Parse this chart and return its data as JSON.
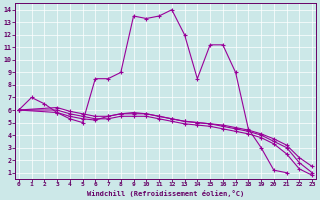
{
  "xlabel": "Windchill (Refroidissement éolien,°C)",
  "background_color": "#cce8e8",
  "line_color": "#990099",
  "xmin": 0,
  "xmax": 23,
  "ymin": 0.5,
  "ymax": 14.5,
  "x_ticks": [
    0,
    1,
    2,
    3,
    4,
    5,
    6,
    7,
    8,
    9,
    10,
    11,
    12,
    13,
    14,
    15,
    16,
    17,
    18,
    19,
    20,
    21,
    22,
    23
  ],
  "y_ticks": [
    1,
    2,
    3,
    4,
    5,
    6,
    7,
    8,
    9,
    10,
    11,
    12,
    13,
    14
  ],
  "line1_x": [
    0,
    1,
    2,
    3,
    4,
    5,
    6,
    7,
    8,
    9,
    10,
    11,
    12,
    13,
    14,
    15,
    16,
    17,
    18,
    19,
    20,
    21
  ],
  "line1_y": [
    6.0,
    7.0,
    6.5,
    5.8,
    5.3,
    5.0,
    8.5,
    8.5,
    9.0,
    13.5,
    13.3,
    13.5,
    14.0,
    12.0,
    8.5,
    11.2,
    11.2,
    9.0,
    4.5,
    3.0,
    1.2,
    1.0
  ],
  "line2_x": [
    0,
    3,
    4,
    5,
    6,
    7,
    8,
    9,
    10,
    11,
    12,
    13,
    14,
    15,
    16,
    17,
    18,
    19,
    20,
    21,
    22,
    23
  ],
  "line2_y": [
    6.0,
    5.8,
    5.5,
    5.3,
    5.2,
    5.5,
    5.7,
    5.8,
    5.7,
    5.5,
    5.3,
    5.1,
    5.0,
    4.9,
    4.7,
    4.5,
    4.3,
    4.0,
    3.5,
    3.0,
    1.8,
    1.0
  ],
  "line3_x": [
    0,
    3,
    4,
    5,
    6,
    7,
    8,
    9,
    10,
    11,
    12,
    13,
    14,
    15,
    16,
    17,
    18,
    19,
    20,
    21,
    22,
    23
  ],
  "line3_y": [
    6.0,
    6.0,
    5.7,
    5.5,
    5.3,
    5.3,
    5.5,
    5.5,
    5.5,
    5.3,
    5.1,
    4.9,
    4.8,
    4.7,
    4.5,
    4.3,
    4.1,
    3.8,
    3.3,
    2.5,
    1.3,
    0.8
  ],
  "line4_x": [
    0,
    3,
    4,
    5,
    6,
    7,
    8,
    9,
    10,
    11,
    12,
    13,
    14,
    15,
    16,
    17,
    18,
    19,
    20,
    21,
    22,
    23
  ],
  "line4_y": [
    6.0,
    6.2,
    5.9,
    5.7,
    5.5,
    5.5,
    5.7,
    5.7,
    5.7,
    5.5,
    5.3,
    5.1,
    5.0,
    4.9,
    4.8,
    4.6,
    4.4,
    4.1,
    3.7,
    3.2,
    2.2,
    1.5
  ]
}
